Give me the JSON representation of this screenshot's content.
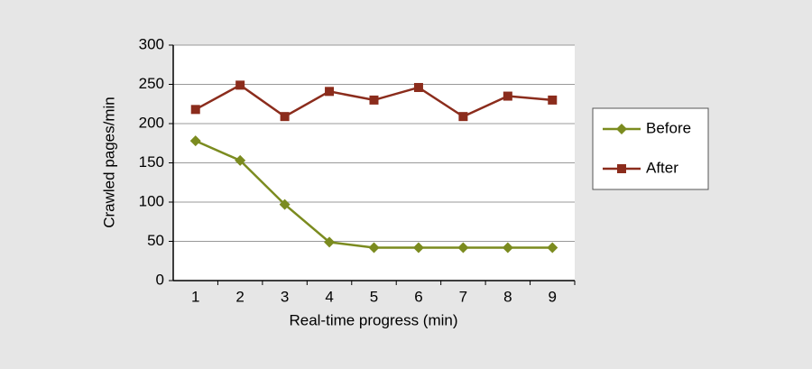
{
  "chart_data": {
    "type": "line",
    "x_label": "Real-time progress (min)",
    "y_label": "Crawled pages/min",
    "categories": [
      "1",
      "2",
      "3",
      "4",
      "5",
      "6",
      "7",
      "8",
      "9"
    ],
    "series": [
      {
        "name": "Before",
        "color": "#7b8b1f",
        "marker": "diamond",
        "values": [
          178,
          153,
          97,
          49,
          42,
          42,
          42,
          42,
          42
        ]
      },
      {
        "name": "After",
        "color": "#8b2c1c",
        "marker": "square",
        "values": [
          218,
          249,
          209,
          241,
          230,
          246,
          209,
          235,
          230
        ]
      }
    ],
    "ylim": [
      0,
      300
    ],
    "yticks": [
      0,
      50,
      100,
      150,
      200,
      250,
      300
    ],
    "grid": true,
    "legend": "right"
  }
}
